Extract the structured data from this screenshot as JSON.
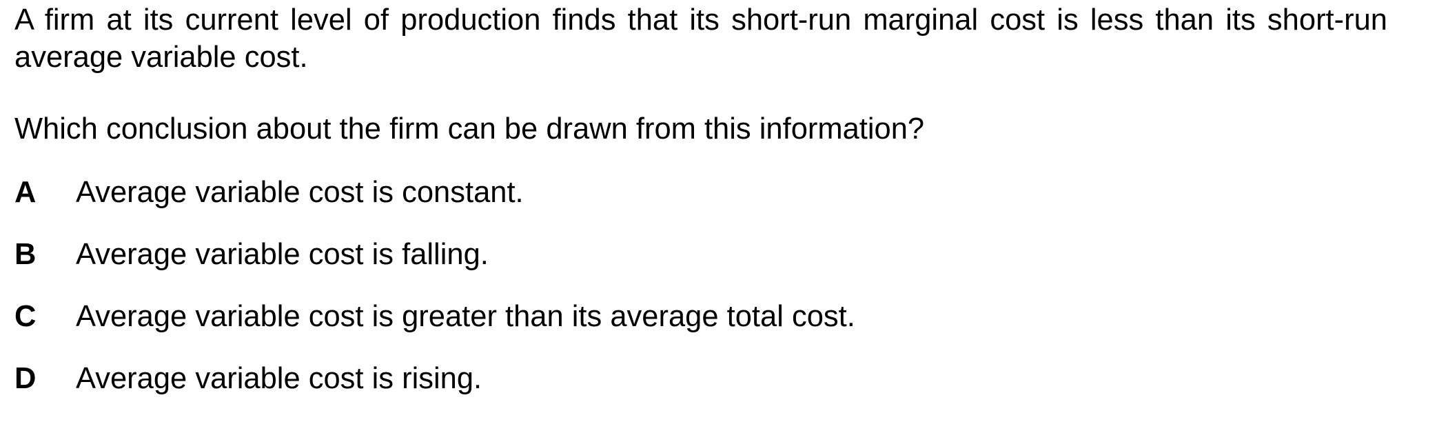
{
  "question": {
    "stem": "A firm at its current level of production finds that its short-run marginal cost is less than its short-run average variable cost.",
    "prompt": "Which conclusion about the firm can be drawn from this information?",
    "options": [
      {
        "letter": "A",
        "text": "Average variable cost is constant."
      },
      {
        "letter": "B",
        "text": "Average variable cost is falling."
      },
      {
        "letter": "C",
        "text": "Average variable cost is greater than its average total cost."
      },
      {
        "letter": "D",
        "text": "Average variable cost is rising."
      }
    ]
  }
}
